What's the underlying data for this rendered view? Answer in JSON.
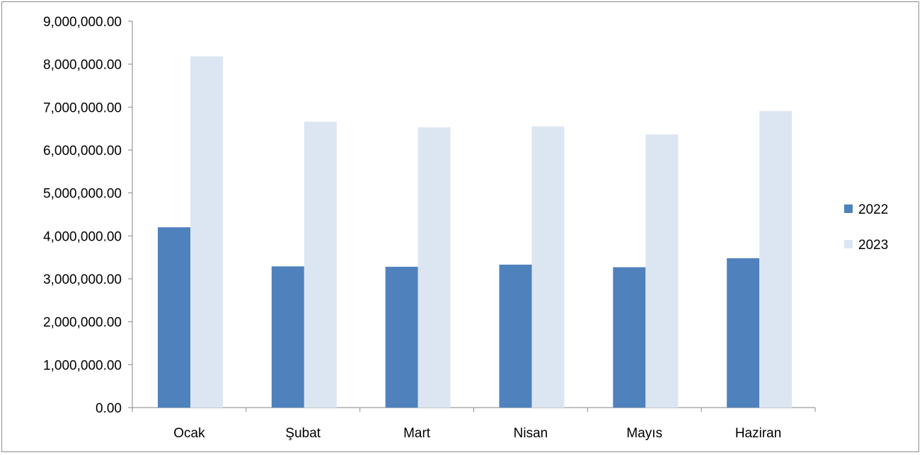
{
  "chart_data": {
    "type": "bar",
    "categories": [
      "Ocak",
      "Şubat",
      "Mart",
      "Nisan",
      "Mayıs",
      "Haziran"
    ],
    "series": [
      {
        "name": "2022",
        "color": "#4f81bd",
        "values": [
          4200000,
          3290000,
          3280000,
          3330000,
          3270000,
          3480000
        ]
      },
      {
        "name": "2023",
        "color": "#dce6f2",
        "values": [
          8180000,
          6660000,
          6530000,
          6550000,
          6360000,
          6910000
        ]
      }
    ],
    "title": "",
    "xlabel": "",
    "ylabel": "",
    "ylim": [
      0,
      9000000
    ],
    "yticks": [
      0,
      1000000,
      2000000,
      3000000,
      4000000,
      5000000,
      6000000,
      7000000,
      8000000,
      9000000
    ],
    "ytick_labels": [
      "0.00",
      "1,000,000.00",
      "2,000,000.00",
      "3,000,000.00",
      "4,000,000.00",
      "5,000,000.00",
      "6,000,000.00",
      "7,000,000.00",
      "8,000,000.00",
      "9,000,000.00"
    ],
    "grid": false,
    "legend_position": "right"
  }
}
